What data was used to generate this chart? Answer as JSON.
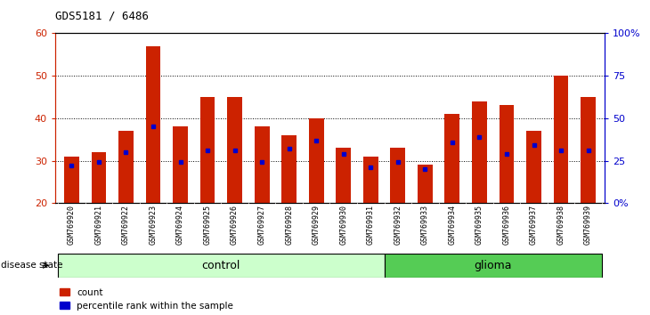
{
  "title": "GDS5181 / 6486",
  "samples": [
    "GSM769920",
    "GSM769921",
    "GSM769922",
    "GSM769923",
    "GSM769924",
    "GSM769925",
    "GSM769926",
    "GSM769927",
    "GSM769928",
    "GSM769929",
    "GSM769930",
    "GSM769931",
    "GSM769932",
    "GSM769933",
    "GSM769934",
    "GSM769935",
    "GSM769936",
    "GSM769937",
    "GSM769938",
    "GSM769939"
  ],
  "count_values": [
    31,
    32,
    37,
    57,
    38,
    45,
    45,
    38,
    36,
    40,
    33,
    31,
    33,
    29,
    41,
    44,
    43,
    37,
    50,
    45
  ],
  "percentile_values": [
    22,
    24,
    30,
    45,
    24,
    31,
    31,
    24,
    32,
    37,
    29,
    21,
    24,
    20,
    36,
    39,
    29,
    34,
    31,
    31
  ],
  "n_control": 12,
  "n_glioma": 8,
  "bar_color": "#CC2200",
  "percentile_color": "#0000CC",
  "control_color": "#CCFFCC",
  "glioma_color": "#55CC55",
  "control_label": "control",
  "glioma_label": "glioma",
  "disease_state_label": "disease state",
  "ylim_left": [
    20,
    60
  ],
  "ylim_right": [
    0,
    100
  ],
  "yticks_left": [
    20,
    30,
    40,
    50,
    60
  ],
  "ytick_labels_right": [
    "0%",
    "25",
    "50",
    "75",
    "100%"
  ],
  "legend_count": "count",
  "legend_percentile": "percentile rank within the sample",
  "bar_width": 0.55,
  "bg_color": "#FFFFFF",
  "tick_label_bg": "#CCCCCC",
  "grid_dotted_color": "#000000"
}
